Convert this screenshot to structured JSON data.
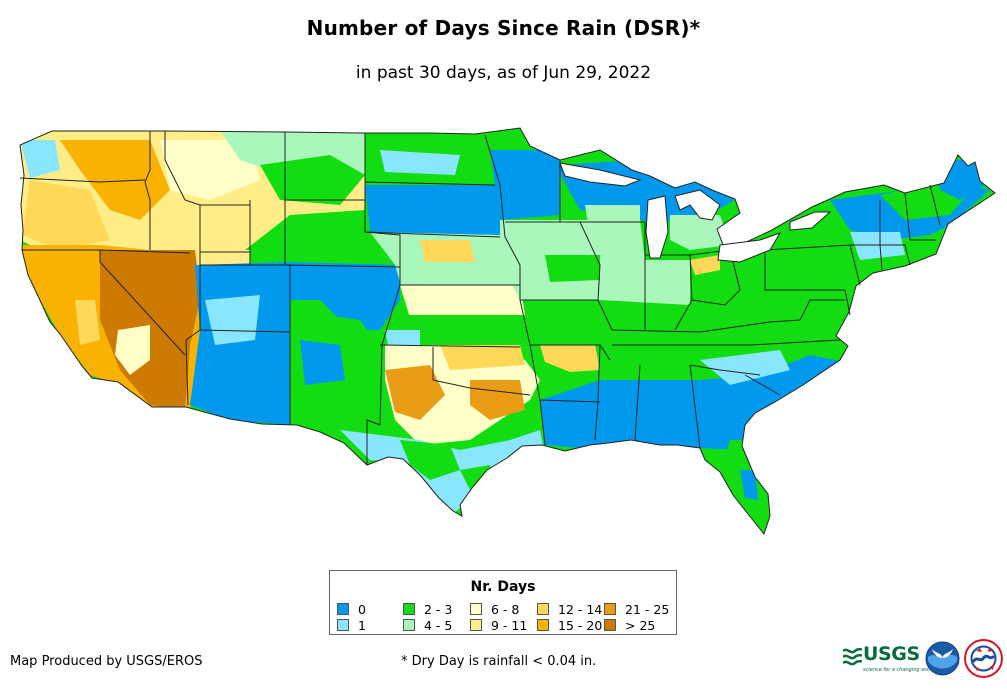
{
  "header": {
    "title": "Number of Days Since Rain (DSR)*",
    "subtitle": "in past 30 days, as of Jun 29, 2022"
  },
  "legend": {
    "title": "Nr. Days",
    "items": [
      {
        "label": "0",
        "color": "#0099ee"
      },
      {
        "label": "1",
        "color": "#88e6ff"
      },
      {
        "label": "2 - 3",
        "color": "#11dd11"
      },
      {
        "label": "4 - 5",
        "color": "#aaf7bb"
      },
      {
        "label": "6 - 8",
        "color": "#ffffc7"
      },
      {
        "label": "9 - 11",
        "color": "#ffee88"
      },
      {
        "label": "12 - 14",
        "color": "#ffd85a"
      },
      {
        "label": "15 - 20",
        "color": "#f9b200"
      },
      {
        "label": "21 - 25",
        "color": "#e99d17"
      },
      {
        "label": "> 25",
        "color": "#cc7a00"
      }
    ]
  },
  "footer": {
    "credit": "Map Produced by USGS/EROS",
    "footnote": "* Dry Day is rainfall < 0.04 in."
  },
  "logos": {
    "usgs": {
      "text": "USGS",
      "tagline": "science for a changing world"
    }
  }
}
